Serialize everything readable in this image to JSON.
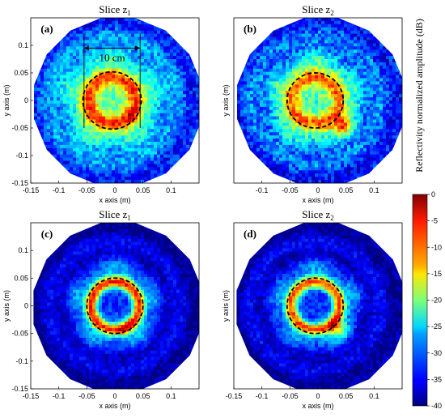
{
  "chart_data": [
    {
      "type": "heatmap",
      "panel": "(a)",
      "title": "Slice z",
      "title_sub": "1",
      "xlabel": "x axis (m)",
      "ylabel": "y axis (m)",
      "xlim": [
        -0.15,
        0.15
      ],
      "ylim": [
        -0.15,
        0.15
      ],
      "xticks": [
        "-0.15",
        "-0.1",
        "-0.05",
        "0",
        "0.05",
        "0.1"
      ],
      "yticks": [
        "0.1",
        "0.05",
        "0",
        "-0.05",
        "-0.1",
        "-0.15"
      ],
      "xticks_vals": [
        -0.15,
        -0.1,
        -0.05,
        0,
        0.05,
        0.1
      ],
      "yticks_vals": [
        0.1,
        0.05,
        0,
        -0.05,
        -0.1,
        -0.15
      ],
      "circle": {
        "cx": -0.005,
        "cy": 0.0,
        "r": 0.052
      },
      "dimension": {
        "label": "10 cm",
        "x1": -0.055,
        "x2": 0.045,
        "y": 0.095
      },
      "model": {
        "bg": 0.46,
        "ring_r": 0.042,
        "ring_amp": 0.52,
        "ring_w": 0.016,
        "outer_r": 0.085,
        "outer_amp": 0.16,
        "hot": [
          0.03,
          -0.035
        ],
        "hot_amp": 0.1,
        "noise": 0.18,
        "seed": 11
      }
    },
    {
      "type": "heatmap",
      "panel": "(b)",
      "title": "Slice z",
      "title_sub": "2",
      "xlabel": "x axis (m)",
      "ylabel": "y axis (m)",
      "xlim": [
        -0.15,
        0.15
      ],
      "ylim": [
        -0.15,
        0.15
      ],
      "xticks": [
        "-0.1",
        "-0.05",
        "0",
        "0.05",
        "0.1"
      ],
      "yticks": [],
      "xticks_vals": [
        -0.1,
        -0.05,
        0,
        0.05,
        0.1
      ],
      "yticks_vals": [],
      "circle": {
        "cx": -0.005,
        "cy": 0.0,
        "r": 0.05
      },
      "model": {
        "bg": 0.42,
        "ring_r": 0.042,
        "ring_amp": 0.5,
        "ring_w": 0.016,
        "outer_r": 0.08,
        "outer_amp": 0.14,
        "hot": [
          0.045,
          -0.045
        ],
        "hot_amp": 0.38,
        "noise": 0.2,
        "seed": 23
      }
    },
    {
      "type": "heatmap",
      "panel": "(c)",
      "title": "Slice z",
      "title_sub": "1",
      "xlabel": "x axis (m)",
      "ylabel": "y axis (m)",
      "xlim": [
        -0.15,
        0.15
      ],
      "ylim": [
        -0.15,
        0.15
      ],
      "xticks": [
        "-0.15",
        "-0.1",
        "-0.05",
        "0",
        "0.05",
        "0.1"
      ],
      "yticks": [
        "0.1",
        "0.05",
        "0",
        "-0.05",
        "-0.1",
        "-0.15"
      ],
      "xticks_vals": [
        -0.15,
        -0.1,
        -0.05,
        0,
        0.05,
        0.1
      ],
      "yticks_vals": [
        0.1,
        0.05,
        0,
        -0.05,
        -0.1,
        -0.15
      ],
      "circle": {
        "cx": 0.0,
        "cy": 0.0,
        "r": 0.05
      },
      "model": {
        "bg": 0.14,
        "ring_r": 0.043,
        "ring_amp": 0.78,
        "ring_w": 0.012,
        "outer_r": 0.075,
        "outer_amp": 0.16,
        "hot": [
          0.02,
          -0.04
        ],
        "hot_amp": 0.12,
        "noise": 0.12,
        "seed": 37
      }
    },
    {
      "type": "heatmap",
      "panel": "(d)",
      "title": "Slice z",
      "title_sub": "2",
      "xlabel": "x axis (m)",
      "ylabel": "y axis (m)",
      "xlim": [
        -0.15,
        0.15
      ],
      "ylim": [
        -0.15,
        0.15
      ],
      "xticks": [
        "-0.15",
        "-0.1",
        "-0.05",
        "0",
        "0.05",
        "0.1"
      ],
      "yticks": [],
      "xticks_vals": [
        -0.15,
        -0.1,
        -0.05,
        0,
        0.05,
        0.1
      ],
      "yticks_vals": [],
      "circle": {
        "cx": -0.005,
        "cy": 0.0,
        "r": 0.05
      },
      "model": {
        "bg": 0.14,
        "ring_r": 0.043,
        "ring_amp": 0.74,
        "ring_w": 0.012,
        "outer_r": 0.075,
        "outer_amp": 0.15,
        "hot": [
          0.035,
          -0.04
        ],
        "hot_amp": 0.32,
        "noise": 0.13,
        "seed": 53
      }
    }
  ],
  "colorbar": {
    "label": "Reflectivity normalized amplitude (dB)",
    "range": [
      -40,
      0
    ],
    "ticks": [
      "0",
      "-5",
      "-10",
      "-15",
      "-20",
      "-25",
      "-30",
      "-35",
      "-40"
    ],
    "ticks_vals": [
      0,
      -5,
      -10,
      -15,
      -20,
      -25,
      -30,
      -35,
      -40
    ],
    "colormap": "jet"
  }
}
